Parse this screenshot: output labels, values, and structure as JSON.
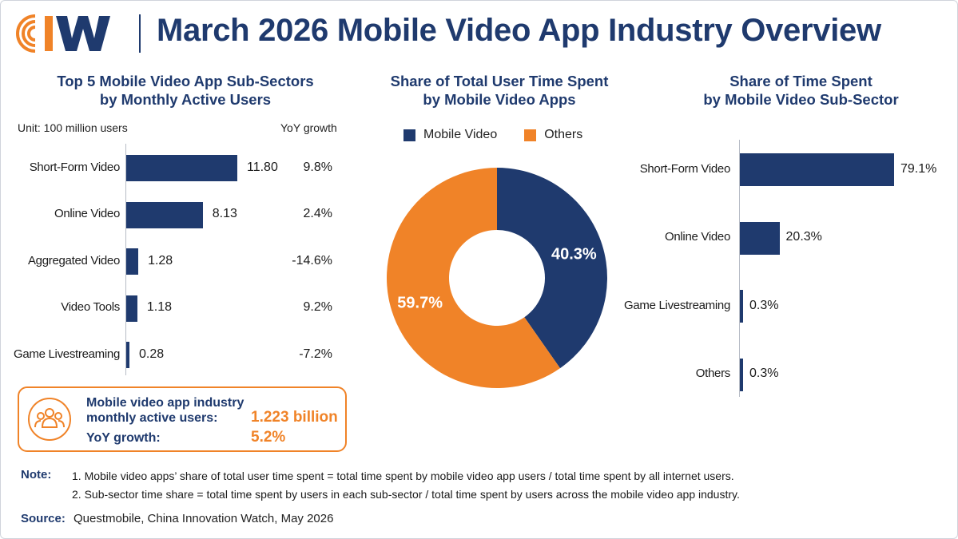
{
  "header": {
    "logo_text": "CIW",
    "title": "March 2026 Mobile Video App Industry Overview"
  },
  "colors": {
    "navy": "#1f3a6e",
    "orange": "#f08328"
  },
  "left_panel": {
    "title_line1": "Top 5 Mobile Video App Sub-Sectors",
    "title_line2": "by Monthly Active Users",
    "unit": "Unit: 100 million users",
    "yoy_header": "YoY growth"
  },
  "middle_panel": {
    "title_line1": "Share of Total User Time Spent",
    "title_line2": "by Mobile Video Apps",
    "legend": [
      {
        "label": "Mobile Video",
        "color": "#1f3a6e"
      },
      {
        "label": "Others",
        "color": "#f08328"
      }
    ]
  },
  "right_panel": {
    "title_line1": "Share of Time Spent",
    "title_line2": "by Mobile Video Sub-Sector"
  },
  "summary": {
    "icon": "people-group-icon",
    "label_line1": "Mobile video app industry",
    "label_line2": "monthly active users:",
    "mau_value": "1.223 billion",
    "yoy_label": "YoY growth:",
    "yoy_value": "5.2%"
  },
  "notes": {
    "label": "Note:",
    "line1": "1.  Mobile video apps’ share of total user time spent = total time spent by mobile video app users / total time spent by all internet users.",
    "line2": "2.  Sub-sector time share = total time spent by users in each sub-sector / total time spent by users across the mobile video app industry."
  },
  "source": {
    "label": "Source:",
    "text": "Questmobile, China Innovation Watch, May 2026"
  },
  "chart_data": [
    {
      "type": "bar",
      "orientation": "horizontal",
      "title": "Top 5 Mobile Video App Sub-Sectors by Monthly Active Users",
      "unit": "100 million users",
      "categories": [
        "Short-Form Video",
        "Online Video",
        "Aggregated Video",
        "Video Tools",
        "Game Livestreaming"
      ],
      "values": [
        11.8,
        8.13,
        1.28,
        1.18,
        0.28
      ],
      "value_labels": [
        "11.80",
        "8.13",
        "1.28",
        "1.18",
        "0.28"
      ],
      "yoy_growth": [
        "9.8%",
        "2.4%",
        "-14.6%",
        "9.2%",
        "-7.2%"
      ],
      "xlim": [
        0,
        11.8
      ]
    },
    {
      "type": "pie",
      "subtype": "donut",
      "title": "Share of Total User Time Spent by Mobile Video Apps",
      "categories": [
        "Mobile Video",
        "Others"
      ],
      "values": [
        40.3,
        59.7
      ],
      "value_labels": [
        "40.3%",
        "59.7%"
      ],
      "colors": [
        "#1f3a6e",
        "#f08328"
      ],
      "legend_position": "top"
    },
    {
      "type": "bar",
      "orientation": "horizontal",
      "title": "Share of Time Spent by Mobile Video Sub-Sector",
      "categories": [
        "Short-Form Video",
        "Online Video",
        "Game Livestreaming",
        "Others"
      ],
      "values": [
        79.1,
        20.3,
        0.3,
        0.3
      ],
      "value_labels": [
        "79.1%",
        "20.3%",
        "0.3%",
        "0.3%"
      ],
      "xlim": [
        0,
        79.1
      ]
    }
  ]
}
